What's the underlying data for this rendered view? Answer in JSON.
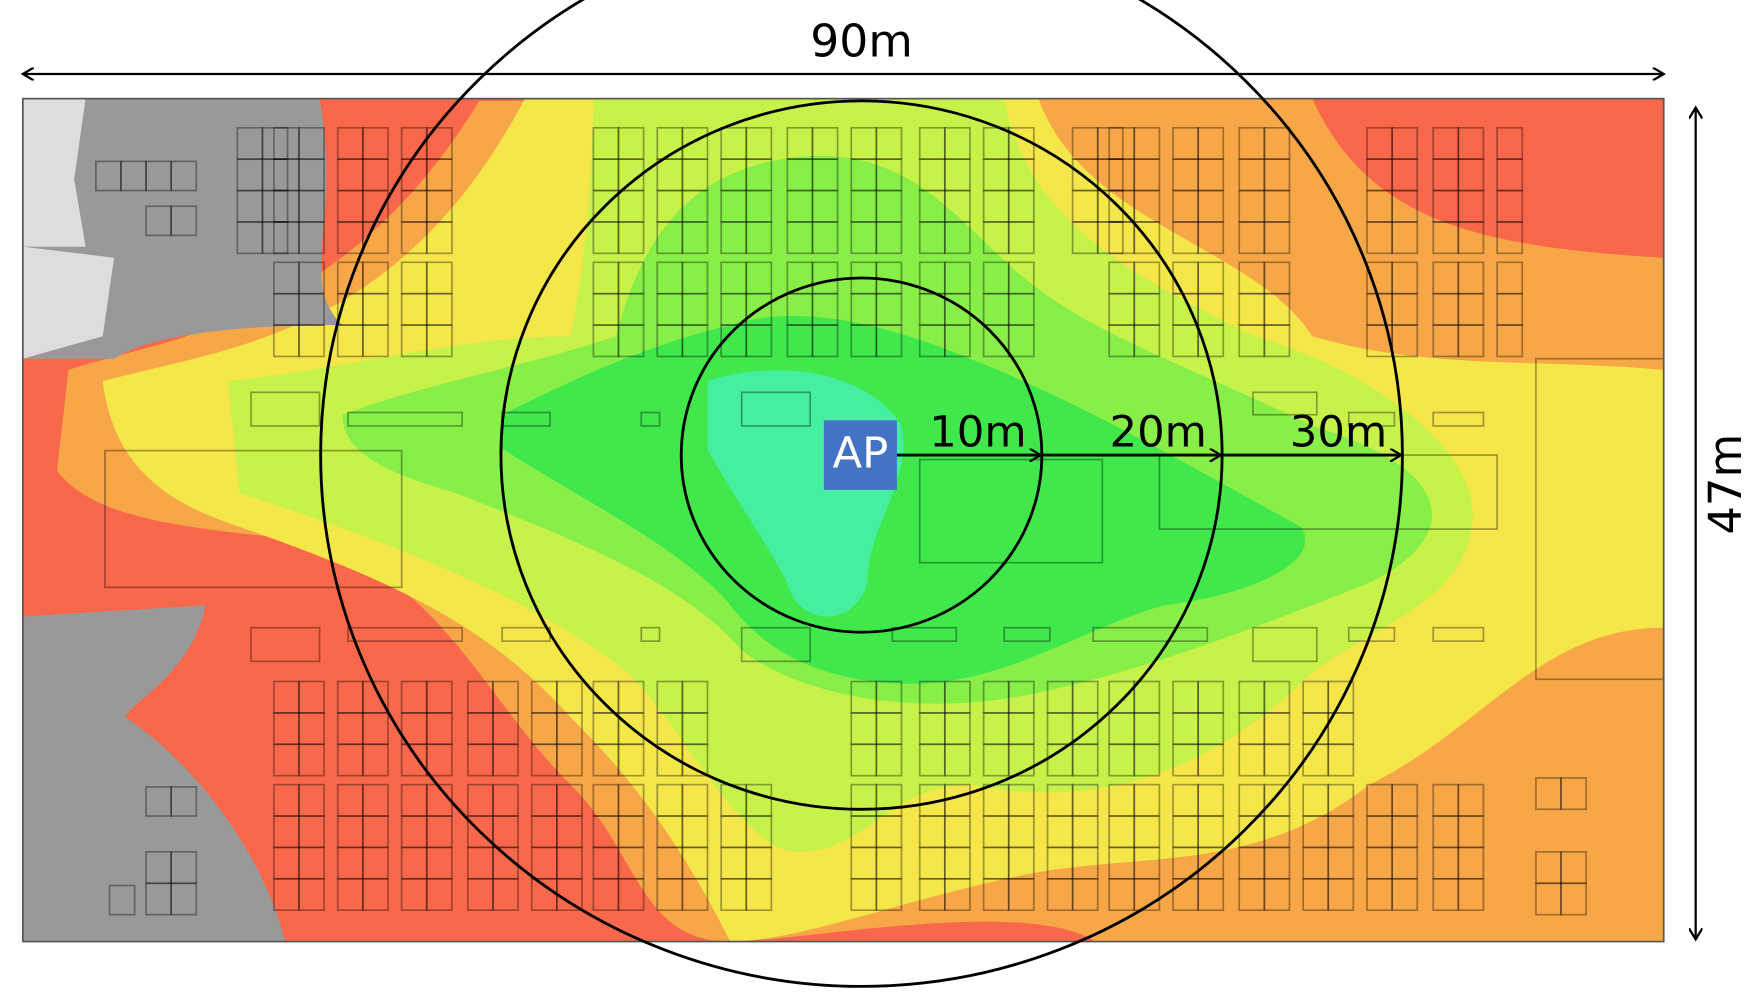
{
  "dimensions": {
    "width": "90m",
    "height": "47m"
  },
  "access_point": "AP",
  "radii": [
    "10m",
    "20m",
    "30m"
  ]
}
